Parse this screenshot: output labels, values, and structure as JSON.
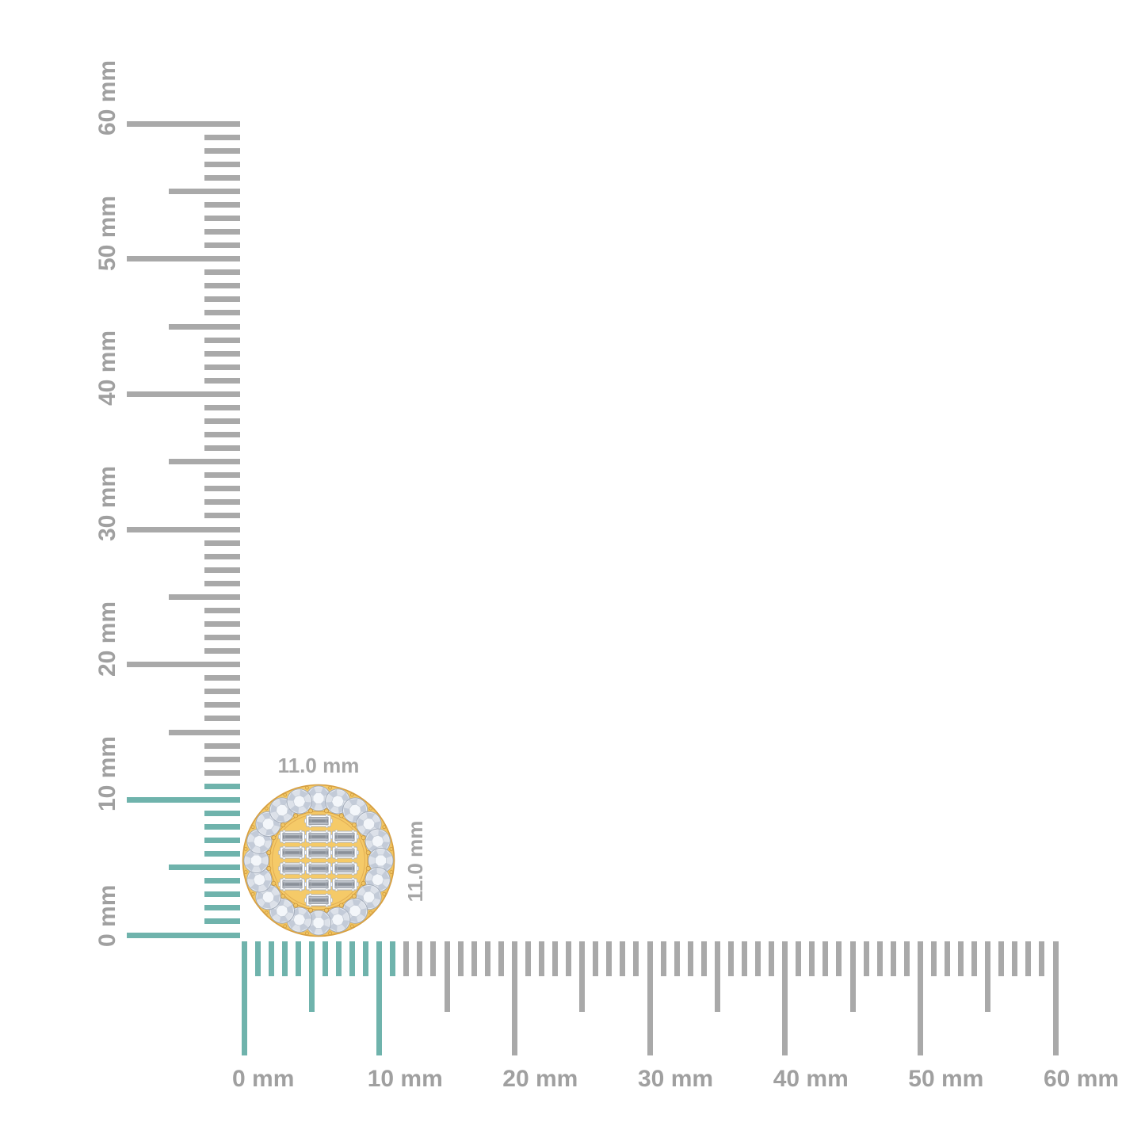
{
  "page": {
    "background": "#ffffff",
    "description": "diamond stud earring shown against millimeter rulers"
  },
  "item": {
    "width_label": "11.0 mm",
    "height_label": "11.0 mm",
    "halo_stone_count": 20,
    "baguette_count": 14,
    "baguette_layout": {
      "middle_column_rows": 6,
      "side_column_rows": 4,
      "columns": 3
    },
    "colors": {
      "gold": "#F4C967",
      "gold_light": "#F9D77E",
      "gold_deep": "#EDBB54",
      "gold_rim": "#D79E3E",
      "gold_plate": "#F5CA68",
      "gold_line": "#E2AF55",
      "prong_fill": "#F0C667",
      "prong_stroke": "#C9953C",
      "diamond_base": "#E9EDF3",
      "facet_light": "#DCE1E9",
      "facet_dark": "#C3CBD8",
      "diamond_outline": "#9FA8B6",
      "diamond_table": "#F3F6FA",
      "diamond_table_stroke": "#C0C8D3",
      "baguette_frame": "#FCFDFE",
      "baguette_frame_stroke": "#ACB3BE",
      "baguette_inner_dark": "#858B94",
      "baguette_inner_mid": "#989EA7",
      "baguette_inner_light": "#DADEE4",
      "baguette_inner_stroke": "#868D97",
      "baguette_step_line": "#B9BEC6"
    }
  },
  "rulers": {
    "unit": "mm",
    "min": 0,
    "max": 60,
    "minor_step": 1,
    "medium_step": 5,
    "label_step": 10,
    "highlight_until": 11,
    "colors": {
      "tick_gray": "#A9A9A9",
      "tick_teal": "#6FB3AC",
      "label_gray": "#A0A0A0"
    },
    "vertical_labels": [
      "0 mm",
      "10 mm",
      "20 mm",
      "30 mm",
      "40 mm",
      "50 mm",
      "60 mm"
    ],
    "horizontal_labels": [
      "0 mm",
      "10 mm",
      "20 mm",
      "30 mm",
      "40 mm",
      "50 mm",
      "60 mm"
    ]
  }
}
